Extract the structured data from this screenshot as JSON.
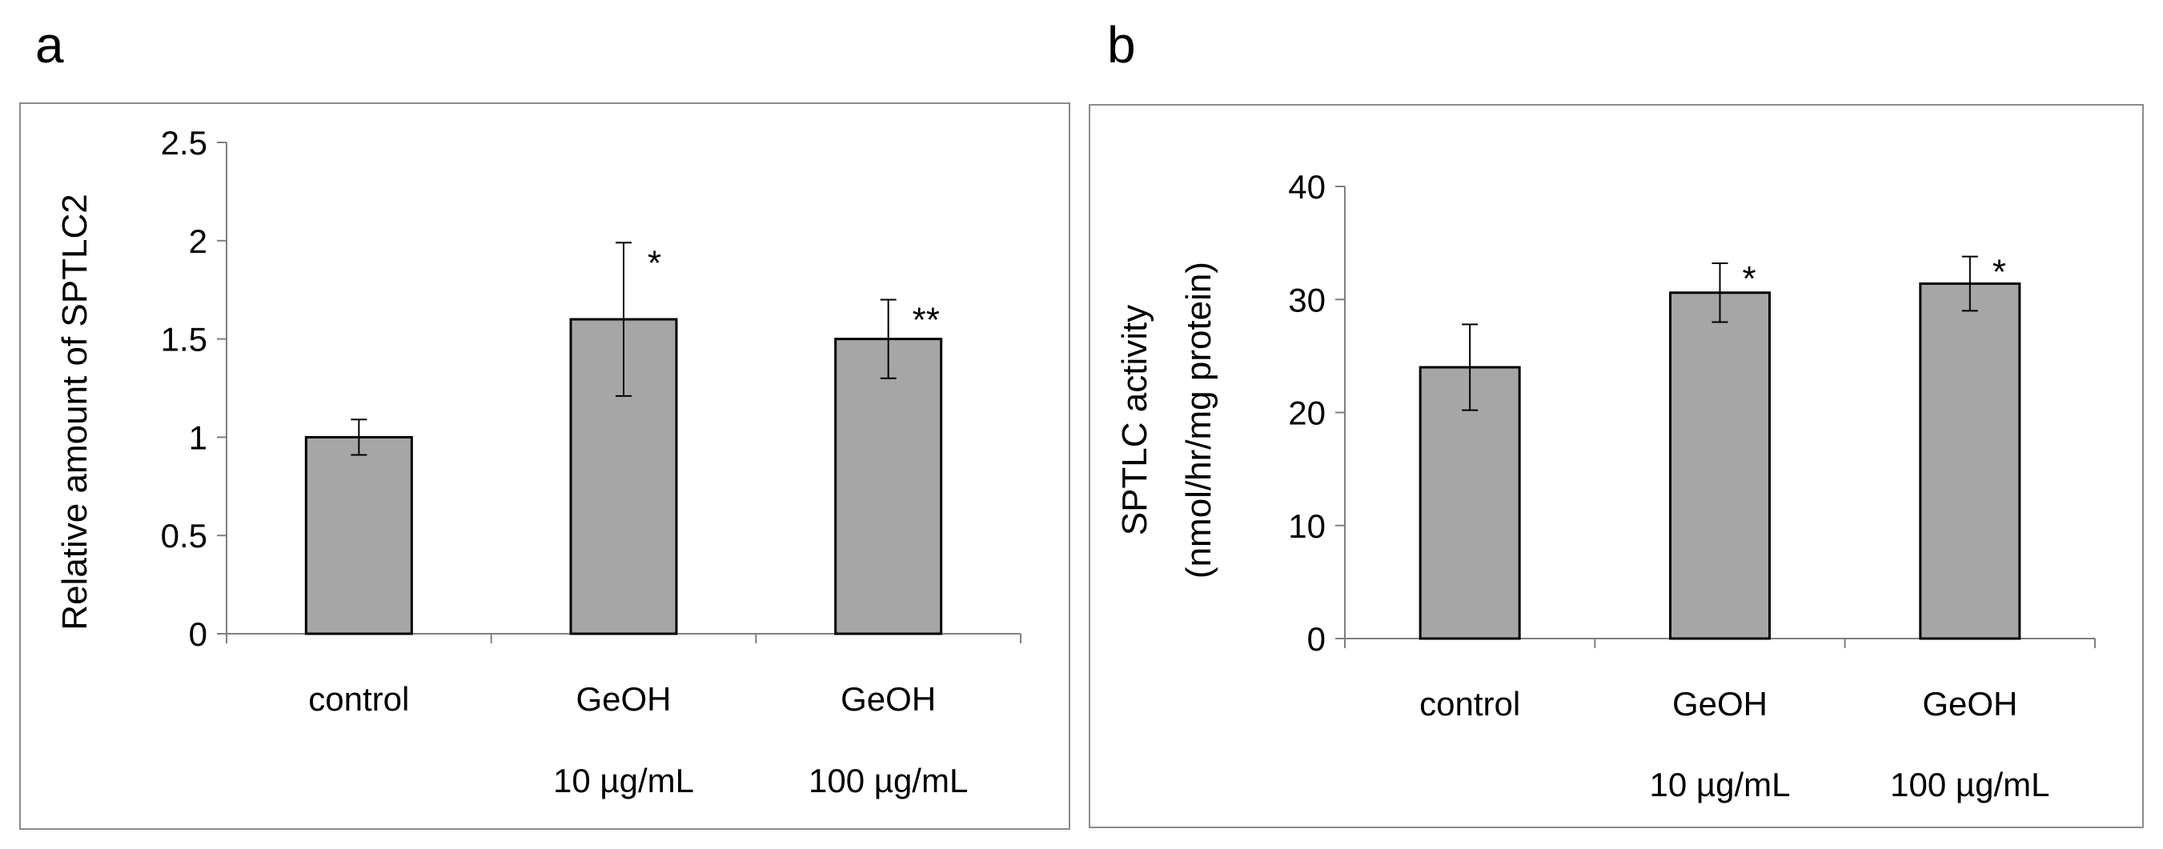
{
  "panels": [
    {
      "letter": "a"
    },
    {
      "letter": "b"
    }
  ],
  "chart_data": [
    {
      "type": "bar",
      "categories": [
        "control",
        "GeOH 10 µg/mL",
        "GeOH 100 µg/mL"
      ],
      "category_lines": [
        [
          "control"
        ],
        [
          "GeOH",
          "10 µg/mL"
        ],
        [
          "GeOH",
          "100 µg/mL"
        ]
      ],
      "values": [
        1.0,
        1.6,
        1.5
      ],
      "errors": [
        0.09,
        0.39,
        0.2
      ],
      "significance": [
        "",
        "*",
        "**"
      ],
      "ylabel": "Relative amount of SPTLC2",
      "ylim": [
        0,
        2.5
      ],
      "yticks": [
        0,
        0.5,
        1,
        1.5,
        2,
        2.5
      ],
      "ytick_labels": [
        "0",
        "0.5",
        "1",
        "1.5",
        "2",
        "2.5"
      ],
      "grid": false,
      "bar_color": "#a6a6a6"
    },
    {
      "type": "bar",
      "categories": [
        "control",
        "GeOH 10 µg/mL",
        "GeOH 100 µg/mL"
      ],
      "category_lines": [
        [
          "control"
        ],
        [
          "GeOH",
          "10 µg/mL"
        ],
        [
          "GeOH",
          "100 µg/mL"
        ]
      ],
      "values": [
        24.0,
        30.6,
        31.4
      ],
      "errors": [
        3.8,
        2.6,
        2.4
      ],
      "significance": [
        "",
        "*",
        "*"
      ],
      "ylabel_lines": [
        "SPTLC activity",
        "(nmol/hr/mg protein)"
      ],
      "ylim": [
        0,
        40
      ],
      "yticks": [
        0,
        10,
        20,
        30,
        40
      ],
      "ytick_labels": [
        "0",
        "10",
        "20",
        "30",
        "40"
      ],
      "grid": false,
      "bar_color": "#a6a6a6"
    }
  ]
}
